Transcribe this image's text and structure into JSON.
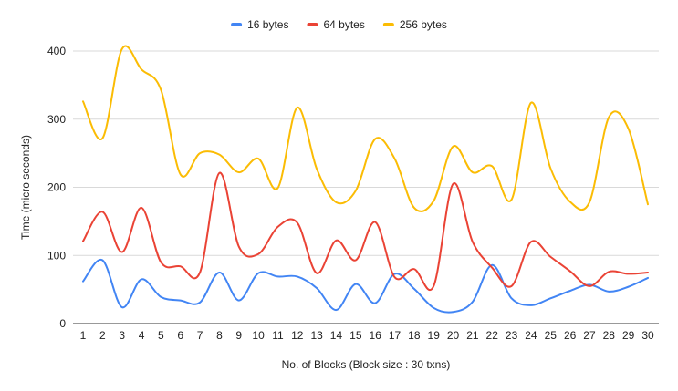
{
  "chart_data": {
    "type": "line",
    "title": "",
    "xlabel": "No. of Blocks (Block size : 30 txns)",
    "ylabel": "Time (micro seconds)",
    "ylim": [
      0,
      400
    ],
    "yticks": [
      0,
      100,
      200,
      300,
      400
    ],
    "grid": true,
    "legend_position": "top",
    "categories": [
      "1",
      "2",
      "3",
      "4",
      "5",
      "6",
      "7",
      "8",
      "9",
      "10",
      "11",
      "12",
      "13",
      "14",
      "15",
      "16",
      "17",
      "18",
      "19",
      "20",
      "21",
      "22",
      "23",
      "24",
      "25",
      "26",
      "27",
      "28",
      "29",
      "30"
    ],
    "series": [
      {
        "name": "16 bytes",
        "color": "#4285f4",
        "values": [
          62,
          93,
          24,
          65,
          39,
          34,
          31,
          75,
          34,
          74,
          69,
          69,
          52,
          20,
          58,
          30,
          73,
          51,
          23,
          17,
          32,
          86,
          37,
          27,
          37,
          48,
          57,
          47,
          54,
          67
        ]
      },
      {
        "name": "64 bytes",
        "color": "#ea4335",
        "values": [
          121,
          164,
          105,
          170,
          90,
          84,
          75,
          221,
          113,
          102,
          142,
          148,
          74,
          122,
          93,
          149,
          68,
          80,
          55,
          205,
          120,
          82,
          55,
          120,
          98,
          77,
          55,
          76,
          73,
          75
        ]
      },
      {
        "name": "256 bytes",
        "color": "#fbbc04",
        "values": [
          326,
          272,
          403,
          373,
          343,
          219,
          250,
          248,
          222,
          242,
          199,
          317,
          227,
          178,
          195,
          271,
          242,
          170,
          180,
          260,
          222,
          231,
          182,
          324,
          228,
          179,
          178,
          303,
          286,
          175
        ]
      }
    ]
  }
}
